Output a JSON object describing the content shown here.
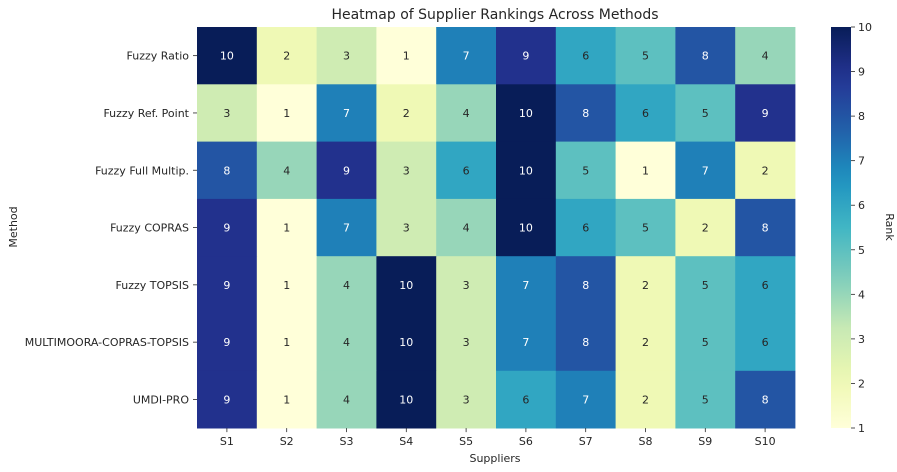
{
  "chart_data": {
    "type": "heatmap",
    "title": "Heatmap of Supplier Rankings Across Methods",
    "xlabel": "Suppliers",
    "ylabel": "Method",
    "colorbar_label": "Rank",
    "colormap": "YlGnBu",
    "vmin": 1,
    "vmax": 10,
    "colorbar_ticks": [
      1,
      2,
      3,
      4,
      5,
      6,
      7,
      8,
      9,
      10
    ],
    "x": [
      "S1",
      "S2",
      "S3",
      "S4",
      "S5",
      "S6",
      "S7",
      "S8",
      "S9",
      "S10"
    ],
    "y": [
      "Fuzzy Ratio",
      "Fuzzy Ref. Point",
      "Fuzzy Full Multip.",
      "Fuzzy COPRAS",
      "Fuzzy TOPSIS",
      "MULTIMOORA-COPRAS-TOPSIS",
      "UMDI-PRO"
    ],
    "values": [
      [
        10,
        2,
        3,
        1,
        7,
        9,
        6,
        5,
        8,
        4
      ],
      [
        3,
        1,
        7,
        2,
        4,
        10,
        8,
        6,
        5,
        9
      ],
      [
        8,
        4,
        9,
        3,
        6,
        10,
        5,
        1,
        7,
        2
      ],
      [
        9,
        1,
        7,
        3,
        4,
        10,
        6,
        5,
        2,
        8
      ],
      [
        9,
        1,
        4,
        10,
        3,
        7,
        8,
        2,
        5,
        6
      ],
      [
        9,
        1,
        4,
        10,
        3,
        7,
        8,
        2,
        5,
        6
      ],
      [
        9,
        1,
        4,
        10,
        3,
        6,
        7,
        2,
        5,
        8
      ]
    ]
  }
}
